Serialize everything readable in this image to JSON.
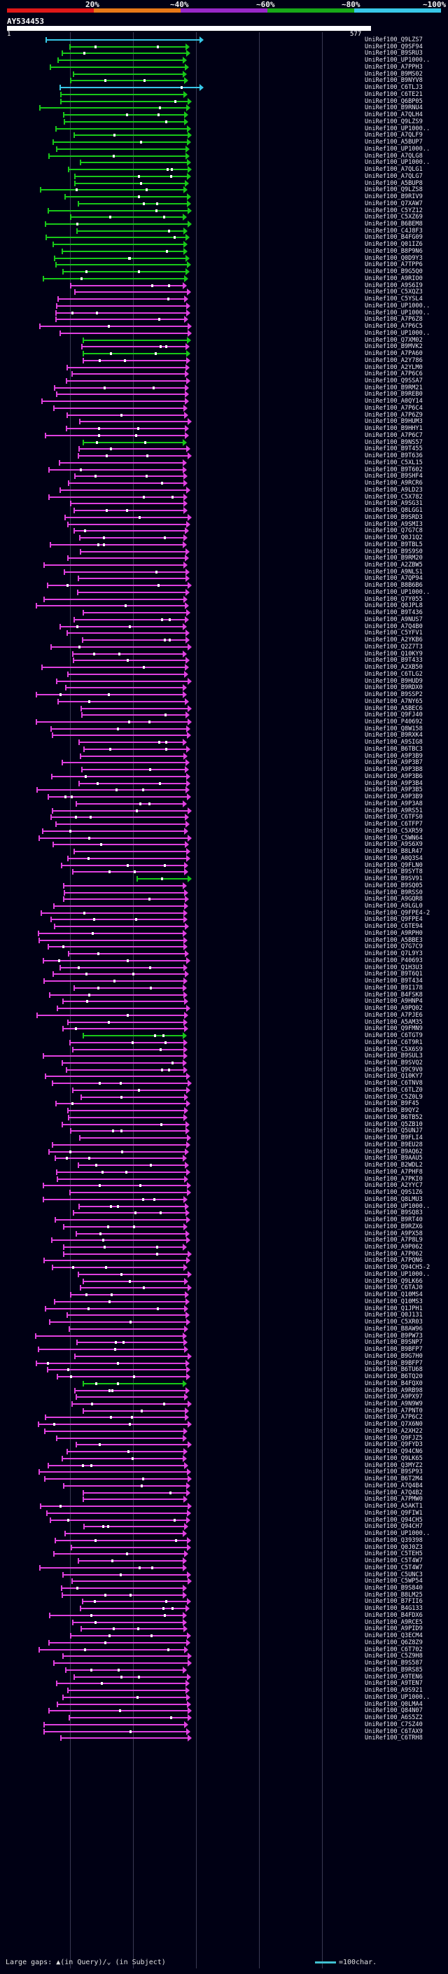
{
  "scale": {
    "labels": [
      "20%",
      "~40%",
      "~60%",
      "~80%",
      "~100%"
    ],
    "colors": [
      "#e01818",
      "#e87818",
      "#9828c8",
      "#18a818",
      "#38c8e8"
    ]
  },
  "query": {
    "name": "AY534453",
    "start": "1",
    "end": "577"
  },
  "hits": [
    "UniRef100_Q9LZS7",
    "UniRef100_Q9SF94",
    "UniRef100_B9SRU3",
    "UniRef100_UP1000..",
    "UniRef100_A7PPH3",
    "UniRef100_B9MS02",
    "UniRef100_B9NYV8",
    "UniRef100_C6TLJ3",
    "UniRef100_C6TE21",
    "UniRef100_Q6BP05",
    "UniRef100_B9RNU4",
    "UniRef100_A7QLH4",
    "UniRef100_Q9LZS9",
    "UniRef100_UP1000..",
    "UniRef100_A7QLF9",
    "UniRef100_A5BUP7",
    "UniRef100_UP1000..",
    "UniRef100_A7QLG8",
    "UniRef100_UP1000..",
    "UniRef100_A7QLG1",
    "UniRef100_A7QLG7",
    "UniRef100_A5BUP8",
    "UniRef100_Q9LZS8",
    "UniRef100_B9RIV9",
    "UniRef100_Q7XAW7",
    "UniRef100_C5YZ12",
    "UniRef100_C5XZ69",
    "UniRef100_B6BEM8",
    "UniRef100_C4J8F3",
    "UniRef100_B4FG09",
    "UniRef100_Q01IZ6",
    "UniRef100_B8P9N6",
    "UniRef100_Q0D9Y3",
    "UniRef100_A7TPP6",
    "UniRef100_B9G5Q0",
    "UniRef100_A9RIO0",
    "UniRef100_A9S6I9",
    "UniRef100_C5XQZ3",
    "UniRef100_C5YSL4",
    "UniRef100_UP1000..",
    "UniRef100_UP1000..",
    "UniRef100_A7P6Z8",
    "UniRef100_A7P6C5",
    "UniRef100_UP1000..",
    "UniRef100_Q7XM02",
    "UniRef100_B9MVK2",
    "UniRef100_A7PA60",
    "UniRef100_A2Y786",
    "UniRef100_A2YLM0",
    "UniRef100_A7P6C6",
    "UniRef100_Q9SSA7",
    "UniRef100_B9RM21",
    "UniRef100_B9REB0",
    "UniRef100_A0QY14",
    "UniRef100_A7P6C4",
    "UniRef100_A7P6Z9",
    "UniRef100_B9HUM3",
    "UniRef100_B9HHY1",
    "UniRef100_A7P6C7",
    "UniRef100_B9NS57",
    "UniRef100_B9T455",
    "UniRef100_B9T636",
    "UniRef100_C5XL15",
    "UniRef100_B9T602",
    "UniRef100_B9SHF4",
    "UniRef100_A9RCR6",
    "UniRef100_A9LD23",
    "UniRef100_C5X782",
    "UniRef100_A9SG31",
    "UniRef100_Q8LGG1",
    "UniRef100_B9SRD3",
    "UniRef100_A9SMI3",
    "UniRef100_Q7G7C8",
    "UniRef100_Q0J1Q2",
    "UniRef100_B9TBL5",
    "UniRef100_B9S9S0",
    "UniRef100_B9RM20",
    "UniRef100_A2ZBW5",
    "UniRef100_A9NLS1",
    "UniRef100_A7QP94",
    "UniRef100_B8B6B6",
    "UniRef100_UP1000..",
    "UniRef100_Q7Y055",
    "UniRef100_Q0JPL8",
    "UniRef100_B9T436",
    "UniRef100_A9NUS7",
    "UniRef100_A7Q4B0",
    "UniRef100_C5YFV1",
    "UniRef100_A2YKB6",
    "UniRef100_Q2Z7T3",
    "UniRef100_Q10KY9",
    "UniRef100_B9T433",
    "UniRef100_A2XB50",
    "UniRef100_C6TLG2",
    "UniRef100_B9HUD9",
    "UniRef100_B9RDX0",
    "UniRef100_B9SSP2",
    "UniRef100_A7NY65",
    "UniRef100_A5BEC6",
    "UniRef100_Q9FJ40",
    "UniRef100_P40692",
    "UniRef100_Q8W158",
    "UniRef100_B9RXK4",
    "UniRef100_A9SIG8",
    "UniRef100_B6TBC3",
    "UniRef100_A9P3B9",
    "UniRef100_A9P3B7",
    "UniRef100_A9P3B8",
    "UniRef100_A9P3B6",
    "UniRef100_A9P3B4",
    "UniRef100_A9P3B5",
    "UniRef100_A9P3B9",
    "UniRef100_A9P3A8",
    "UniRef100_A9RS51",
    "UniRef100_C6TFS0",
    "UniRef100_C6TFP7",
    "UniRef100_C5XR59",
    "UniRef100_C5WN64",
    "UniRef100_A9S6X9",
    "UniRef100_B8LR47",
    "UniRef100_A0Q3S4",
    "UniRef100_Q9FLN0",
    "UniRef100_B9SYT8",
    "UniRef100_B9SV91",
    "UniRef100_B9SQ05",
    "UniRef100_B9RSS0",
    "UniRef100_A9GQR8",
    "UniRef100_A9LGL0",
    "UniRef100_Q9FPE4-2",
    "UniRef100_Q9FPE4",
    "UniRef100_C6TE94",
    "UniRef100_A9RPH0",
    "UniRef100_A5BBE3",
    "UniRef100_Q7G7C9",
    "UniRef100_Q7L9Y3",
    "UniRef100_P40693",
    "UniRef100_Q1H3U3",
    "UniRef100_B9T6Q1",
    "UniRef100_B9T434",
    "UniRef100_B9I178",
    "UniRef100_B4FSK8",
    "UniRef100_A9HNP4",
    "UniRef100_A9PQ02",
    "UniRef100_A7PJE6",
    "UniRef100_A5AM35",
    "UniRef100_Q9FMN9",
    "UniRef100_C6TGT9",
    "UniRef100_C6T9R1",
    "UniRef100_C5X6S9",
    "UniRef100_B9SUL3",
    "UniRef100_B9SVQ2",
    "UniRef100_Q9C9V0",
    "UniRef100_Q10KY7",
    "UniRef100_C6TNV8",
    "UniRef100_C6TLZ0",
    "UniRef100_C5Z0L9",
    "UniRef100_B9F45",
    "UniRef100_B9QY2",
    "UniRef100_B6TB52",
    "UniRef100_Q5ZB10",
    "UniRef100_Q5UNJ7",
    "UniRef100_B9FLI4",
    "UniRef100_B9EU28",
    "UniRef100_B9AQ62",
    "UniRef100_B9AAU5",
    "UniRef100_B2WDL2",
    "UniRef100_A7PHF8",
    "UniRef100_A7PKI0",
    "UniRef100_A2YYC7",
    "UniRef100_Q9S1Z6",
    "UniRef100_Q8LMU3",
    "UniRef100_UP1000..",
    "UniRef100_B9SQ83",
    "UniRef100_B9RT40",
    "UniRef100_B9RZX6",
    "UniRef100_A9PX58",
    "UniRef100_A7P8L9",
    "UniRef100_A9P062",
    "UniRef100_A7P062",
    "UniRef100_A7PQN6",
    "UniRef100_Q94CH5-2",
    "UniRef100_UP1000..",
    "UniRef100_Q9LK66",
    "UniRef100_C6TAJ0",
    "UniRef100_Q10MS4",
    "UniRef100_Q10MS3",
    "UniRef100_Q1JPH1",
    "UniRef100_Q0J131",
    "UniRef100_C5XR03",
    "UniRef100_B8AW96",
    "UniRef100_B9PW73",
    "UniRef100_B9SNP7",
    "UniRef100_B9BFP7",
    "UniRef100_B9G7H0",
    "UniRef100_B9BFP7",
    "UniRef100_B6TU68",
    "UniRef100_B6TQ20",
    "UniRef100_B4FQX0",
    "UniRef100_A9RB98",
    "UniRef100_A9PX97",
    "UniRef100_A9N9W9",
    "UniRef100_A7PNT0",
    "UniRef100_A7P6C2",
    "UniRef100_Q7X6N0",
    "UniRef100_A2XH22",
    "UniRef100_Q9FJZ5",
    "UniRef100_Q9FYD3",
    "UniRef100_Q94CN6",
    "UniRef100_Q9LK65",
    "UniRef100_Q3MYZ2",
    "UniRef100_B9SP93",
    "UniRef100_B6T2M4",
    "UniRef100_A7Q4B4",
    "UniRef100_A7Q4B2",
    "UniRef100_A7PMW0",
    "UniRef100_A5AKT1",
    "UniRef100_Q9FIW1",
    "UniRef100_Q94CH5",
    "UniRef100_Q94CH7",
    "UniRef100_UP1000..",
    "UniRef100_Q39398",
    "UniRef100_Q0J0Z3",
    "UniRef100_C5TEH5",
    "UniRef100_C5T4W7",
    "UniRef100_C5T4W7",
    "UniRef100_C5UNC3",
    "UniRef100_C5WP54",
    "UniRef100_B9S840",
    "UniRef100_B8LM25",
    "UniRef100_B7FII6",
    "UniRef100_B4G133",
    "UniRef100_B4FDX6",
    "UniRef100_A9RCE5",
    "UniRef100_A9PID9",
    "UniRef100_Q3ECM4",
    "UniRef100_Q6Z8Z9",
    "UniRef100_C6T702",
    "UniRef100_C5Z9H8",
    "UniRef100_B9S587",
    "UniRef100_B9RS85",
    "UniRef100_A9TEN6",
    "UniRef100_A9TEN7",
    "UniRef100_A9S921",
    "UniRef100_UP1000..",
    "UniRef100_Q0LMA4",
    "UniRef100_Q84N07",
    "UniRef100_A6S5Z2",
    "UniRef100_C7SZ40",
    "UniRef100_C6TAX9",
    "UniRef100_C6TRH8"
  ],
  "footer": {
    "text": "Large gaps: ▲(in Query)/⌄ (in Subject)",
    "legend": "=100char."
  }
}
